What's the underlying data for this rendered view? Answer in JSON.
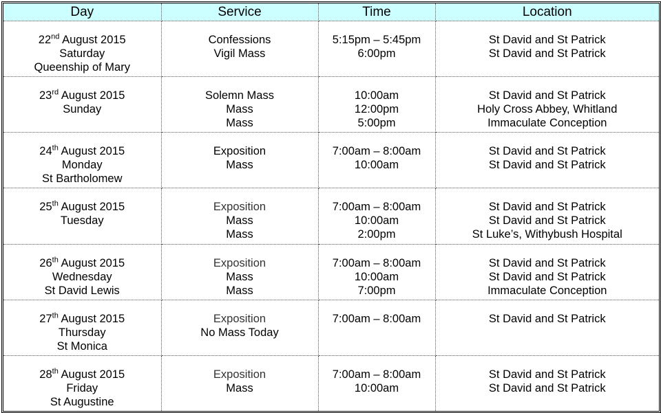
{
  "headers": [
    "Day",
    "Service",
    "Time",
    "Location"
  ],
  "rows": [
    {
      "date": "22",
      "suffix": "nd",
      "month": "August 2015",
      "weekday": "Saturday",
      "feast": "Queenship of Mary",
      "services": [
        "Confessions",
        "Vigil Mass"
      ],
      "times": [
        "5:15pm – 5:45pm",
        "6:00pm"
      ],
      "locations": [
        "St David and St Patrick",
        "St David and St Patrick"
      ]
    },
    {
      "date": "23",
      "suffix": "rd",
      "month": "August 2015",
      "weekday": "Sunday",
      "feast": "",
      "services": [
        "Solemn Mass",
        "Mass",
        "Mass"
      ],
      "times": [
        "10:00am",
        "12:00pm",
        "5:00pm"
      ],
      "locations": [
        "St David and St Patrick",
        "Holy Cross Abbey, Whitland",
        "Immaculate Conception"
      ]
    },
    {
      "date": "24",
      "suffix": "th",
      "month": "August 2015",
      "weekday": "Monday",
      "feast": "St Bartholomew",
      "services": [
        "Exposition",
        "Mass"
      ],
      "times": [
        "7:00am – 8:00am",
        "10:00am"
      ],
      "locations": [
        "St David and St Patrick",
        "St David and St Patrick"
      ]
    },
    {
      "date": "25",
      "suffix": "th",
      "month": "August 2015",
      "weekday": "Tuesday",
      "feast": "",
      "services": [
        "Exposition",
        "Mass",
        "Mass"
      ],
      "times": [
        "7:00am – 8:00am",
        "10:00am",
        "2:00pm"
      ],
      "locations": [
        "St David and St Patrick",
        "St David and St Patrick",
        "St Luke’s, Withybush Hospital"
      ]
    },
    {
      "date": "26",
      "suffix": "th",
      "month": "August 2015",
      "weekday": "Wednesday",
      "feast": "St David Lewis",
      "services": [
        "Exposition",
        "Mass",
        "Mass"
      ],
      "times": [
        "7:00am – 8:00am",
        "10:00am",
        "7:00pm"
      ],
      "locations": [
        "St David and St Patrick",
        "St David and St Patrick",
        "Immaculate Conception"
      ]
    },
    {
      "date": "27",
      "suffix": "th",
      "month": "August 2015",
      "weekday": "Thursday",
      "feast": "St Monica",
      "services": [
        "Exposition",
        "No Mass Today"
      ],
      "times": [
        "7:00am – 8:00am"
      ],
      "locations": [
        "St David and St Patrick"
      ]
    },
    {
      "date": "28",
      "suffix": "th",
      "month": "August 2015",
      "weekday": "Friday",
      "feast": "St Augustine",
      "services": [
        "Exposition",
        "Mass"
      ],
      "times": [
        "7:00am – 8:00am",
        "10:00am"
      ],
      "locations": [
        "St David and St Patrick",
        "St David and St Patrick"
      ]
    }
  ],
  "colors": {
    "header_bg": "#ccffff"
  }
}
